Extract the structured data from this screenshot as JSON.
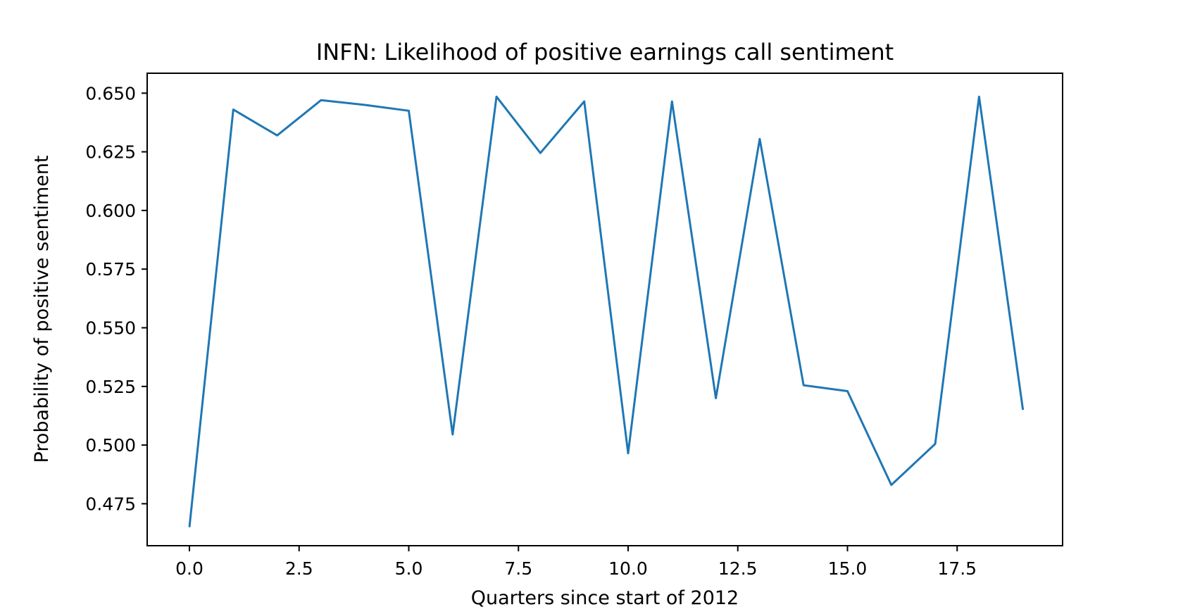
{
  "chart_data": {
    "type": "line",
    "title": "INFN: Likelihood of positive earnings call sentiment",
    "xlabel": "Quarters since start of 2012",
    "ylabel": "Probability of positive sentiment",
    "x": [
      0,
      1,
      2,
      3,
      4,
      5,
      6,
      7,
      8,
      9,
      10,
      11,
      12,
      13,
      14,
      15,
      16,
      17,
      18,
      19
    ],
    "values": [
      0.465,
      0.643,
      0.632,
      0.647,
      0.645,
      0.6425,
      0.5045,
      0.6485,
      0.6245,
      0.6465,
      0.4965,
      0.6465,
      0.52,
      0.6305,
      0.5255,
      0.523,
      0.483,
      0.5005,
      0.6485,
      0.515
    ],
    "x_tick_labels": [
      "0.0",
      "2.5",
      "5.0",
      "7.5",
      "10.0",
      "12.5",
      "15.0",
      "17.5"
    ],
    "y_tick_labels": [
      "0.475",
      "0.500",
      "0.525",
      "0.550",
      "0.575",
      "0.600",
      "0.625",
      "0.650"
    ],
    "xlim": [
      -0.95,
      19.95
    ],
    "ylim": [
      0.457,
      0.659
    ],
    "grid": false,
    "legend": null,
    "line_color": "#1f77b4",
    "background_color": "#ffffff"
  }
}
